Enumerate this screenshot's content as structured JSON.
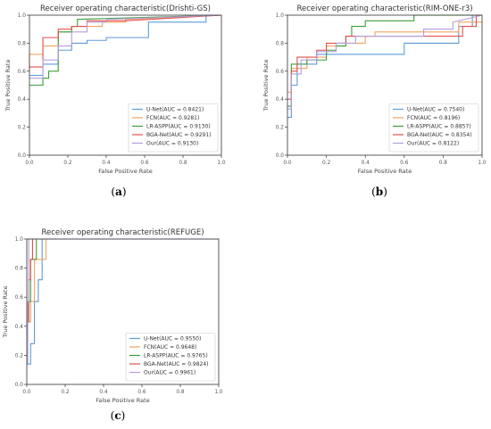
{
  "chart_data": [
    {
      "type": "line",
      "title": "Receiver operating characteristic(Drishti-GS)",
      "xlabel": "False Positive Rate",
      "ylabel": "True Positive Rate",
      "xlim": [
        0,
        1
      ],
      "ylim": [
        0,
        1
      ],
      "xticks": [
        "0.0",
        "0.2",
        "0.4",
        "0.6",
        "0.8",
        "1.0"
      ],
      "yticks": [
        "0.0",
        "0.2",
        "0.4",
        "0.6",
        "0.8",
        "1.0"
      ],
      "grid": false,
      "legend_position": "lower-right",
      "caption": {
        "open": "(",
        "letter": "a",
        "close": ")"
      },
      "series": [
        {
          "name": "U-Net(AUC = 0.8421)",
          "color": "#5b9bd5",
          "points": [
            [
              0,
              0.57
            ],
            [
              0.07,
              0.57
            ],
            [
              0.07,
              0.65
            ],
            [
              0.15,
              0.65
            ],
            [
              0.15,
              0.75
            ],
            [
              0.22,
              0.75
            ],
            [
              0.22,
              0.8
            ],
            [
              0.3,
              0.8
            ],
            [
              0.3,
              0.82
            ],
            [
              0.4,
              0.82
            ],
            [
              0.4,
              0.84
            ],
            [
              0.62,
              0.84
            ],
            [
              0.62,
              0.95
            ],
            [
              0.92,
              0.95
            ],
            [
              0.92,
              1.0
            ],
            [
              1,
              1.0
            ]
          ]
        },
        {
          "name": "FCN(AUC = 0.9281)",
          "color": "#f4a460",
          "points": [
            [
              0,
              0.6
            ],
            [
              0,
              0.72
            ],
            [
              0.07,
              0.72
            ],
            [
              0.07,
              0.78
            ],
            [
              0.15,
              0.78
            ],
            [
              0.15,
              0.88
            ],
            [
              0.22,
              0.88
            ],
            [
              0.22,
              0.92
            ],
            [
              0.38,
              0.92
            ],
            [
              0.38,
              0.95
            ],
            [
              0.5,
              0.95
            ],
            [
              0.5,
              0.97
            ],
            [
              1,
              1.0
            ]
          ]
        },
        {
          "name": "LR-ASPP(AUC = 0.9130)",
          "color": "#3a9e3a",
          "points": [
            [
              0,
              0.5
            ],
            [
              0.07,
              0.5
            ],
            [
              0.07,
              0.55
            ],
            [
              0.1,
              0.55
            ],
            [
              0.1,
              0.6
            ],
            [
              0.15,
              0.6
            ],
            [
              0.15,
              0.88
            ],
            [
              0.22,
              0.88
            ],
            [
              0.22,
              0.92
            ],
            [
              0.25,
              0.92
            ],
            [
              0.25,
              0.97
            ],
            [
              1,
              1.0
            ]
          ]
        },
        {
          "name": "BGA-Net(AUC = 0.9291)",
          "color": "#e0504a",
          "points": [
            [
              0,
              0.63
            ],
            [
              0.07,
              0.63
            ],
            [
              0.07,
              0.84
            ],
            [
              0.15,
              0.84
            ],
            [
              0.15,
              0.9
            ],
            [
              0.22,
              0.9
            ],
            [
              0.22,
              0.92
            ],
            [
              0.3,
              0.92
            ],
            [
              0.3,
              0.96
            ],
            [
              0.5,
              0.96
            ],
            [
              1,
              1.0
            ]
          ]
        },
        {
          "name": "Our(AUC = 0.9130)",
          "color": "#b39ddb",
          "points": [
            [
              0,
              0.55
            ],
            [
              0.07,
              0.55
            ],
            [
              0.07,
              0.68
            ],
            [
              0.15,
              0.68
            ],
            [
              0.15,
              0.78
            ],
            [
              0.22,
              0.78
            ],
            [
              0.22,
              0.88
            ],
            [
              0.3,
              0.88
            ],
            [
              0.3,
              0.95
            ],
            [
              0.4,
              0.95
            ],
            [
              0.4,
              0.97
            ],
            [
              1,
              1.0
            ]
          ]
        }
      ]
    },
    {
      "type": "line",
      "title": "Receiver operating characteristic(RIM-ONE-r3)",
      "xlabel": "False Positive Rate",
      "ylabel": "True Positive Rate",
      "xlim": [
        0,
        1
      ],
      "ylim": [
        0,
        1
      ],
      "xticks": [
        "0.0",
        "0.2",
        "0.4",
        "0.6",
        "0.8",
        "1.0"
      ],
      "yticks": [
        "0.0",
        "0.2",
        "0.4",
        "0.6",
        "0.8",
        "1.0"
      ],
      "grid": false,
      "legend_position": "lower-right",
      "caption": {
        "open": "(",
        "letter": "b",
        "close": ")"
      },
      "series": [
        {
          "name": "U-Net(AUC = 0.7540)",
          "color": "#5b9bd5",
          "points": [
            [
              0,
              0.27
            ],
            [
              0.02,
              0.27
            ],
            [
              0.02,
              0.5
            ],
            [
              0.05,
              0.5
            ],
            [
              0.05,
              0.65
            ],
            [
              0.15,
              0.65
            ],
            [
              0.15,
              0.72
            ],
            [
              0.6,
              0.72
            ],
            [
              0.6,
              0.8
            ],
            [
              0.88,
              0.8
            ],
            [
              0.88,
              0.92
            ],
            [
              0.95,
              0.92
            ],
            [
              0.95,
              1.0
            ],
            [
              1,
              1.0
            ]
          ]
        },
        {
          "name": "FCN(AUC = 0.8196)",
          "color": "#f4a460",
          "points": [
            [
              0,
              0.45
            ],
            [
              0.02,
              0.45
            ],
            [
              0.02,
              0.62
            ],
            [
              0.1,
              0.62
            ],
            [
              0.1,
              0.7
            ],
            [
              0.2,
              0.7
            ],
            [
              0.2,
              0.78
            ],
            [
              0.3,
              0.78
            ],
            [
              0.3,
              0.8
            ],
            [
              0.4,
              0.8
            ],
            [
              0.4,
              0.85
            ],
            [
              0.45,
              0.85
            ],
            [
              0.45,
              0.88
            ],
            [
              0.88,
              0.88
            ],
            [
              0.88,
              0.95
            ],
            [
              1,
              0.95
            ]
          ]
        },
        {
          "name": "LR-ASPP(AUC = 0.8857)",
          "color": "#3a9e3a",
          "points": [
            [
              0,
              0.35
            ],
            [
              0.02,
              0.35
            ],
            [
              0.02,
              0.65
            ],
            [
              0.1,
              0.65
            ],
            [
              0.1,
              0.68
            ],
            [
              0.2,
              0.68
            ],
            [
              0.2,
              0.75
            ],
            [
              0.25,
              0.75
            ],
            [
              0.25,
              0.78
            ],
            [
              0.3,
              0.78
            ],
            [
              0.3,
              0.85
            ],
            [
              0.33,
              0.85
            ],
            [
              0.33,
              0.92
            ],
            [
              0.4,
              0.92
            ],
            [
              0.4,
              0.96
            ],
            [
              0.65,
              0.96
            ],
            [
              0.65,
              1.0
            ],
            [
              1,
              1.0
            ]
          ]
        },
        {
          "name": "BGA-Net(AUC = 0.8354)",
          "color": "#e0504a",
          "points": [
            [
              0,
              0.4
            ],
            [
              0.02,
              0.4
            ],
            [
              0.02,
              0.6
            ],
            [
              0.05,
              0.6
            ],
            [
              0.05,
              0.7
            ],
            [
              0.15,
              0.7
            ],
            [
              0.15,
              0.75
            ],
            [
              0.2,
              0.75
            ],
            [
              0.2,
              0.8
            ],
            [
              0.3,
              0.8
            ],
            [
              0.3,
              0.85
            ],
            [
              0.9,
              0.85
            ],
            [
              0.9,
              0.92
            ],
            [
              0.97,
              0.92
            ],
            [
              0.97,
              1.0
            ],
            [
              1,
              1.0
            ]
          ]
        },
        {
          "name": "Our(AUC = 0.8122)",
          "color": "#b39ddb",
          "points": [
            [
              0,
              0.33
            ],
            [
              0.02,
              0.33
            ],
            [
              0.02,
              0.58
            ],
            [
              0.07,
              0.58
            ],
            [
              0.07,
              0.68
            ],
            [
              0.15,
              0.68
            ],
            [
              0.15,
              0.74
            ],
            [
              0.25,
              0.74
            ],
            [
              0.25,
              0.8
            ],
            [
              0.35,
              0.8
            ],
            [
              0.35,
              0.85
            ],
            [
              0.7,
              0.85
            ],
            [
              0.7,
              0.9
            ],
            [
              0.85,
              0.9
            ],
            [
              0.85,
              0.95
            ],
            [
              1,
              1.0
            ]
          ]
        }
      ]
    },
    {
      "type": "line",
      "title": "Receiver operating characteristic(REFUGE)",
      "xlabel": "False Positive Rate",
      "ylabel": "True Positive Rate",
      "xlim": [
        0,
        1
      ],
      "ylim": [
        0,
        1
      ],
      "xticks": [
        "0.0",
        "0.2",
        "0.4",
        "0.6",
        "0.8",
        "1.0"
      ],
      "yticks": [
        "0.0",
        "0.2",
        "0.4",
        "0.6",
        "0.8",
        "1.0"
      ],
      "grid": false,
      "legend_position": "lower-right",
      "caption": {
        "open": "(",
        "letter": "c",
        "close": ")"
      },
      "series": [
        {
          "name": "U-Net(AUC = 0.9550)",
          "color": "#5b9bd5",
          "points": [
            [
              0,
              0.14
            ],
            [
              0.02,
              0.14
            ],
            [
              0.02,
              0.28
            ],
            [
              0.04,
              0.28
            ],
            [
              0.04,
              0.57
            ],
            [
              0.06,
              0.57
            ],
            [
              0.06,
              0.72
            ],
            [
              0.08,
              0.72
            ],
            [
              0.08,
              1.0
            ],
            [
              1,
              1.0
            ]
          ]
        },
        {
          "name": "FCN(AUC = 0.9648)",
          "color": "#f4a460",
          "points": [
            [
              0,
              0.43
            ],
            [
              0.02,
              0.43
            ],
            [
              0.02,
              0.57
            ],
            [
              0.04,
              0.57
            ],
            [
              0.04,
              0.86
            ],
            [
              0.08,
              0.86
            ],
            [
              0.08,
              0.86
            ],
            [
              0.1,
              0.86
            ],
            [
              0.1,
              1.0
            ],
            [
              1,
              1.0
            ]
          ]
        },
        {
          "name": "LR-ASPP(AUC = 0.9765)",
          "color": "#3a9e3a",
          "points": [
            [
              0,
              0.43
            ],
            [
              0.01,
              0.43
            ],
            [
              0.01,
              0.57
            ],
            [
              0.02,
              0.57
            ],
            [
              0.02,
              0.86
            ],
            [
              0.05,
              0.86
            ],
            [
              0.05,
              1.0
            ],
            [
              1,
              1.0
            ]
          ]
        },
        {
          "name": "BGA-Net(AUC = 0.9824)",
          "color": "#e0504a",
          "points": [
            [
              0,
              0.43
            ],
            [
              0.01,
              0.43
            ],
            [
              0.01,
              0.72
            ],
            [
              0.02,
              0.72
            ],
            [
              0.02,
              0.86
            ],
            [
              0.03,
              0.86
            ],
            [
              0.03,
              1.0
            ],
            [
              1,
              1.0
            ]
          ]
        },
        {
          "name": "Our(AUC = 0.9961)",
          "color": "#b39ddb",
          "points": [
            [
              0,
              0.14
            ],
            [
              0.005,
              0.14
            ],
            [
              0.005,
              0.57
            ],
            [
              0.01,
              0.57
            ],
            [
              0.01,
              1.0
            ],
            [
              1,
              1.0
            ]
          ]
        }
      ]
    }
  ]
}
